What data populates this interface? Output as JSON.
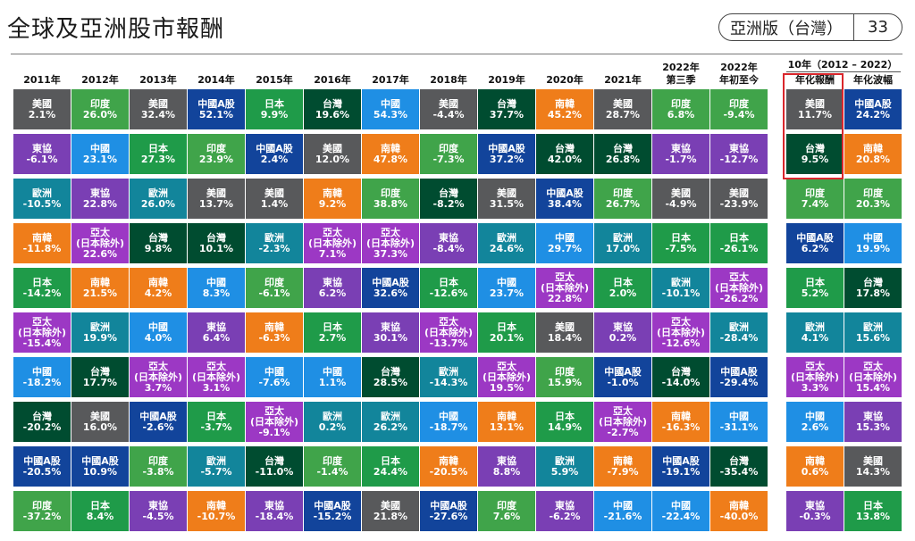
{
  "title": "全球及亞洲股市報酬",
  "badge": {
    "edition": "亞洲版（台灣）",
    "page": "33"
  },
  "colors": {
    "美國": "#58595b",
    "印度": "#40a44a",
    "中國A股": "#12449b",
    "日本": "#1f9b49",
    "台灣": "#004c30",
    "中國": "#1f8fe4",
    "南韓": "#ef7d1a",
    "東協": "#7a3fb4",
    "歐洲": "#12859b",
    "亞太": "#9c38c4"
  },
  "ten_year_header": "10年（2012 – 2022）",
  "headers": [
    "2011年",
    "2012年",
    "2013年",
    "2014年",
    "2015年",
    "2016年",
    "2017年",
    "2018年",
    "2019年",
    "2020年",
    "2021年",
    "2022年\n第三季",
    "2022年\n年初至今",
    "年化報酬",
    "年化波幅"
  ],
  "columns": [
    [
      {
        "name": "美國",
        "value": "2.1%"
      },
      {
        "name": "東協",
        "value": "-6.1%"
      },
      {
        "name": "歐洲",
        "value": "-10.5%"
      },
      {
        "name": "南韓",
        "value": "-11.8%"
      },
      {
        "name": "日本",
        "value": "-14.2%"
      },
      {
        "name": "亞太",
        "sub": "(日本除外)",
        "value": "-15.4%"
      },
      {
        "name": "中國",
        "value": "-18.2%"
      },
      {
        "name": "台灣",
        "value": "-20.2%"
      },
      {
        "name": "中國A股",
        "value": "-20.5%"
      },
      {
        "name": "印度",
        "value": "-37.2%"
      }
    ],
    [
      {
        "name": "印度",
        "value": "26.0%"
      },
      {
        "name": "中國",
        "value": "23.1%"
      },
      {
        "name": "東協",
        "value": "22.8%"
      },
      {
        "name": "亞太",
        "sub": "(日本除外)",
        "value": "22.6%"
      },
      {
        "name": "南韓",
        "value": "21.5%"
      },
      {
        "name": "歐洲",
        "value": "19.9%"
      },
      {
        "name": "台灣",
        "value": "17.7%"
      },
      {
        "name": "美國",
        "value": "16.0%"
      },
      {
        "name": "中國A股",
        "value": "10.9%"
      },
      {
        "name": "日本",
        "value": "8.4%"
      }
    ],
    [
      {
        "name": "美國",
        "value": "32.4%"
      },
      {
        "name": "日本",
        "value": "27.3%"
      },
      {
        "name": "歐洲",
        "value": "26.0%"
      },
      {
        "name": "台灣",
        "value": "9.8%"
      },
      {
        "name": "南韓",
        "value": "4.2%"
      },
      {
        "name": "中國",
        "value": "4.0%"
      },
      {
        "name": "亞太",
        "sub": "(日本除外)",
        "value": "3.7%"
      },
      {
        "name": "中國A股",
        "value": "-2.6%"
      },
      {
        "name": "印度",
        "value": "-3.8%"
      },
      {
        "name": "東協",
        "value": "-4.5%"
      }
    ],
    [
      {
        "name": "中國A股",
        "value": "52.1%"
      },
      {
        "name": "印度",
        "value": "23.9%"
      },
      {
        "name": "美國",
        "value": "13.7%"
      },
      {
        "name": "台灣",
        "value": "10.1%"
      },
      {
        "name": "中國",
        "value": "8.3%"
      },
      {
        "name": "東協",
        "value": "6.4%"
      },
      {
        "name": "亞太",
        "sub": "(日本除外)",
        "value": "3.1%"
      },
      {
        "name": "日本",
        "value": "-3.7%"
      },
      {
        "name": "歐洲",
        "value": "-5.7%"
      },
      {
        "name": "南韓",
        "value": "-10.7%"
      }
    ],
    [
      {
        "name": "日本",
        "value": "9.9%"
      },
      {
        "name": "中國A股",
        "value": "2.4%"
      },
      {
        "name": "美國",
        "value": "1.4%"
      },
      {
        "name": "歐洲",
        "value": "-2.3%"
      },
      {
        "name": "印度",
        "value": "-6.1%"
      },
      {
        "name": "南韓",
        "value": "-6.3%"
      },
      {
        "name": "中國",
        "value": "-7.6%"
      },
      {
        "name": "亞太",
        "sub": "(日本除外)",
        "value": "-9.1%"
      },
      {
        "name": "台灣",
        "value": "-11.0%"
      },
      {
        "name": "東協",
        "value": "-18.4%"
      }
    ],
    [
      {
        "name": "台灣",
        "value": "19.6%"
      },
      {
        "name": "美國",
        "value": "12.0%"
      },
      {
        "name": "南韓",
        "value": "9.2%"
      },
      {
        "name": "亞太",
        "sub": "(日本除外)",
        "value": "7.1%"
      },
      {
        "name": "東協",
        "value": "6.2%"
      },
      {
        "name": "日本",
        "value": "2.7%"
      },
      {
        "name": "中國",
        "value": "1.1%"
      },
      {
        "name": "歐洲",
        "value": "0.2%"
      },
      {
        "name": "印度",
        "value": "-1.4%"
      },
      {
        "name": "中國A股",
        "value": "-15.2%"
      }
    ],
    [
      {
        "name": "中國",
        "value": "54.3%"
      },
      {
        "name": "南韓",
        "value": "47.8%"
      },
      {
        "name": "印度",
        "value": "38.8%"
      },
      {
        "name": "亞太",
        "sub": "(日本除外)",
        "value": "37.3%"
      },
      {
        "name": "中國A股",
        "value": "32.6%"
      },
      {
        "name": "東協",
        "value": "30.1%"
      },
      {
        "name": "台灣",
        "value": "28.5%"
      },
      {
        "name": "歐洲",
        "value": "26.2%"
      },
      {
        "name": "日本",
        "value": "24.4%"
      },
      {
        "name": "美國",
        "value": "21.8%"
      }
    ],
    [
      {
        "name": "美國",
        "value": "-4.4%"
      },
      {
        "name": "印度",
        "value": "-7.3%"
      },
      {
        "name": "台灣",
        "value": "-8.2%"
      },
      {
        "name": "東協",
        "value": "-8.4%"
      },
      {
        "name": "日本",
        "value": "-12.6%"
      },
      {
        "name": "亞太",
        "sub": "(日本除外)",
        "value": "-13.7%"
      },
      {
        "name": "歐洲",
        "value": "-14.3%"
      },
      {
        "name": "中國",
        "value": "-18.7%"
      },
      {
        "name": "南韓",
        "value": "-20.5%"
      },
      {
        "name": "中國A股",
        "value": "-27.6%"
      }
    ],
    [
      {
        "name": "台灣",
        "value": "37.7%"
      },
      {
        "name": "中國A股",
        "value": "37.2%"
      },
      {
        "name": "美國",
        "value": "31.5%"
      },
      {
        "name": "歐洲",
        "value": "24.6%"
      },
      {
        "name": "中國",
        "value": "23.7%"
      },
      {
        "name": "日本",
        "value": "20.1%"
      },
      {
        "name": "亞太",
        "sub": "(日本除外)",
        "value": "19.5%"
      },
      {
        "name": "南韓",
        "value": "13.1%"
      },
      {
        "name": "東協",
        "value": "8.8%"
      },
      {
        "name": "印度",
        "value": "7.6%"
      }
    ],
    [
      {
        "name": "南韓",
        "value": "45.2%"
      },
      {
        "name": "台灣",
        "value": "42.0%"
      },
      {
        "name": "中國A股",
        "value": "38.4%"
      },
      {
        "name": "中國",
        "value": "29.7%"
      },
      {
        "name": "亞太",
        "sub": "(日本除外)",
        "value": "22.8%"
      },
      {
        "name": "美國",
        "value": "18.4%"
      },
      {
        "name": "印度",
        "value": "15.9%"
      },
      {
        "name": "日本",
        "value": "14.9%"
      },
      {
        "name": "歐洲",
        "value": "5.9%"
      },
      {
        "name": "東協",
        "value": "-6.2%"
      }
    ],
    [
      {
        "name": "美國",
        "value": "28.7%"
      },
      {
        "name": "台灣",
        "value": "26.8%"
      },
      {
        "name": "印度",
        "value": "26.7%"
      },
      {
        "name": "歐洲",
        "value": "17.0%"
      },
      {
        "name": "日本",
        "value": "2.0%"
      },
      {
        "name": "東協",
        "value": "0.2%"
      },
      {
        "name": "中國A股",
        "value": "-1.0%"
      },
      {
        "name": "亞太",
        "sub": "(日本除外)",
        "value": "-2.7%"
      },
      {
        "name": "南韓",
        "value": "-7.9%"
      },
      {
        "name": "中國",
        "value": "-21.6%"
      }
    ],
    [
      {
        "name": "印度",
        "value": "6.8%"
      },
      {
        "name": "東協",
        "value": "-1.7%"
      },
      {
        "name": "美國",
        "value": "-4.9%"
      },
      {
        "name": "日本",
        "value": "-7.5%"
      },
      {
        "name": "歐洲",
        "value": "-10.1%"
      },
      {
        "name": "亞太",
        "sub": "(日本除外)",
        "value": "-12.6%"
      },
      {
        "name": "台灣",
        "value": "-14.0%"
      },
      {
        "name": "南韓",
        "value": "-16.3%"
      },
      {
        "name": "中國A股",
        "value": "-19.1%"
      },
      {
        "name": "中國",
        "value": "-22.4%"
      }
    ],
    [
      {
        "name": "印度",
        "value": "-9.4%"
      },
      {
        "name": "東協",
        "value": "-12.7%"
      },
      {
        "name": "美國",
        "value": "-23.9%"
      },
      {
        "name": "日本",
        "value": "-26.1%"
      },
      {
        "name": "亞太",
        "sub": "(日本除外)",
        "value": "-26.2%"
      },
      {
        "name": "歐洲",
        "value": "-28.4%"
      },
      {
        "name": "中國A股",
        "value": "-29.4%"
      },
      {
        "name": "中國",
        "value": "-31.1%"
      },
      {
        "name": "台灣",
        "value": "-35.4%"
      },
      {
        "name": "南韓",
        "value": "-40.0%"
      }
    ],
    [
      {
        "name": "美國",
        "value": "11.7%"
      },
      {
        "name": "台灣",
        "value": "9.5%"
      },
      {
        "name": "印度",
        "value": "7.4%"
      },
      {
        "name": "中國A股",
        "value": "6.2%"
      },
      {
        "name": "日本",
        "value": "5.2%"
      },
      {
        "name": "歐洲",
        "value": "4.1%"
      },
      {
        "name": "亞太",
        "sub": "(日本除外)",
        "value": "3.3%"
      },
      {
        "name": "中國",
        "value": "2.6%"
      },
      {
        "name": "南韓",
        "value": "0.6%"
      },
      {
        "name": "東協",
        "value": "-0.3%"
      }
    ],
    [
      {
        "name": "中國A股",
        "value": "24.2%"
      },
      {
        "name": "南韓",
        "value": "20.8%"
      },
      {
        "name": "印度",
        "value": "20.3%"
      },
      {
        "name": "中國",
        "value": "19.9%"
      },
      {
        "name": "台灣",
        "value": "17.8%"
      },
      {
        "name": "歐洲",
        "value": "15.6%"
      },
      {
        "name": "亞太",
        "sub": "(日本除外)",
        "value": "15.4%"
      },
      {
        "name": "東協",
        "value": "15.3%"
      },
      {
        "name": "美國",
        "value": "14.3%"
      },
      {
        "name": "日本",
        "value": "13.8%"
      }
    ]
  ]
}
